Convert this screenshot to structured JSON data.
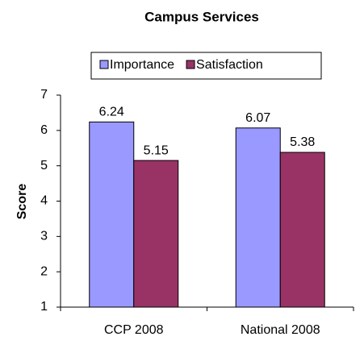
{
  "chart_data": {
    "type": "bar",
    "title": "Campus Services",
    "categories": [
      "CCP 2008",
      "National 2008"
    ],
    "series": [
      {
        "name": "Importance",
        "color": "#9999ff",
        "values": [
          6.24,
          6.07
        ]
      },
      {
        "name": "Satisfaction",
        "color": "#993366",
        "values": [
          5.15,
          5.38
        ]
      }
    ],
    "ylabel": "Score",
    "ylim": [
      1,
      7
    ],
    "yticks": [
      1,
      2,
      3,
      4,
      5,
      6,
      7
    ],
    "grid": false,
    "legend": "top"
  }
}
